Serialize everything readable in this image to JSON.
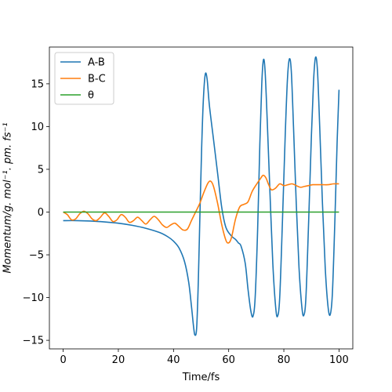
{
  "chart_data": {
    "type": "line",
    "xlabel": "Time/fs",
    "ylabel": "Momentum/g. mol⁻¹. pm. fs⁻¹",
    "xlim": [
      -5,
      105
    ],
    "ylim": [
      -16,
      19.3
    ],
    "xticks": [
      0,
      20,
      40,
      60,
      80,
      100
    ],
    "yticks": [
      -15,
      -10,
      -5,
      0,
      5,
      10,
      15
    ],
    "grid": false,
    "legend_position": "upper-left",
    "series": [
      {
        "name": "A-B",
        "color": "#1f77b4",
        "points": [
          [
            0,
            -1.0
          ],
          [
            5,
            -1.0
          ],
          [
            10,
            -1.05
          ],
          [
            15,
            -1.15
          ],
          [
            20,
            -1.3
          ],
          [
            25,
            -1.55
          ],
          [
            30,
            -1.9
          ],
          [
            35,
            -2.4
          ],
          [
            38,
            -2.9
          ],
          [
            40,
            -3.4
          ],
          [
            42,
            -4.2
          ],
          [
            44,
            -5.8
          ],
          [
            45.5,
            -8.2
          ],
          [
            46.5,
            -11.0
          ],
          [
            47.3,
            -13.5
          ],
          [
            47.8,
            -14.4
          ],
          [
            48.4,
            -13.5
          ],
          [
            49,
            -8.0
          ],
          [
            49.6,
            0.0
          ],
          [
            50.2,
            7.5
          ],
          [
            50.8,
            13.0
          ],
          [
            51.5,
            16.1
          ],
          [
            52.2,
            15.5
          ],
          [
            53,
            12.5
          ],
          [
            54.5,
            8.5
          ],
          [
            56,
            4.5
          ],
          [
            57.5,
            0.5
          ],
          [
            59,
            -1.8
          ],
          [
            61,
            -2.8
          ],
          [
            62.5,
            -3.2
          ],
          [
            63.5,
            -3.6
          ],
          [
            64.5,
            -4.0
          ],
          [
            66,
            -6.0
          ],
          [
            67,
            -9.0
          ],
          [
            68,
            -11.5
          ],
          [
            68.8,
            -12.2
          ],
          [
            69.6,
            -10.0
          ],
          [
            70.5,
            -2.0
          ],
          [
            71.3,
            8.0
          ],
          [
            72,
            15.0
          ],
          [
            72.6,
            17.8
          ],
          [
            73.2,
            16.5
          ],
          [
            74,
            10.5
          ],
          [
            75,
            2.0
          ],
          [
            76,
            -6.0
          ],
          [
            77,
            -11.0
          ],
          [
            77.7,
            -12.2
          ],
          [
            78.5,
            -10.0
          ],
          [
            79.5,
            -1.0
          ],
          [
            80.5,
            9.0
          ],
          [
            81.3,
            15.5
          ],
          [
            82.0,
            17.9
          ],
          [
            82.7,
            16.5
          ],
          [
            83.5,
            10.0
          ],
          [
            84.5,
            1.0
          ],
          [
            85.5,
            -6.5
          ],
          [
            86.5,
            -11.0
          ],
          [
            87.2,
            -12.1
          ],
          [
            88.0,
            -10.0
          ],
          [
            89,
            -1.0
          ],
          [
            90,
            9.0
          ],
          [
            90.8,
            15.5
          ],
          [
            91.5,
            18.1
          ],
          [
            92.2,
            16.5
          ],
          [
            93,
            10.0
          ],
          [
            94,
            1.0
          ],
          [
            95,
            -6.5
          ],
          [
            96,
            -11.0
          ],
          [
            96.8,
            -12.0
          ],
          [
            97.6,
            -9.5
          ],
          [
            98.5,
            -1.0
          ],
          [
            99.3,
            8.0
          ],
          [
            100,
            14.3
          ]
        ]
      },
      {
        "name": "B-C",
        "color": "#ff7f0e",
        "points": [
          [
            0,
            0.0
          ],
          [
            1.5,
            -0.3
          ],
          [
            3,
            -0.9
          ],
          [
            4.5,
            -0.8
          ],
          [
            6,
            -0.2
          ],
          [
            7.5,
            0.1
          ],
          [
            9,
            -0.2
          ],
          [
            10.5,
            -0.8
          ],
          [
            12,
            -1.0
          ],
          [
            13.5,
            -0.6
          ],
          [
            15,
            -0.1
          ],
          [
            16.5,
            -0.5
          ],
          [
            18,
            -1.1
          ],
          [
            19.5,
            -0.9
          ],
          [
            21,
            -0.3
          ],
          [
            22.5,
            -0.6
          ],
          [
            24,
            -1.2
          ],
          [
            25.5,
            -1.0
          ],
          [
            27,
            -0.6
          ],
          [
            28.5,
            -1.0
          ],
          [
            30,
            -1.4
          ],
          [
            31.5,
            -0.9
          ],
          [
            33,
            -0.5
          ],
          [
            34.5,
            -0.9
          ],
          [
            36,
            -1.5
          ],
          [
            37.5,
            -1.8
          ],
          [
            39,
            -1.5
          ],
          [
            40.5,
            -1.3
          ],
          [
            42,
            -1.7
          ],
          [
            43.5,
            -2.1
          ],
          [
            45,
            -2.0
          ],
          [
            46.5,
            -1.0
          ],
          [
            48,
            0.0
          ],
          [
            49.5,
            1.0
          ],
          [
            51,
            2.3
          ],
          [
            52.5,
            3.4
          ],
          [
            53.5,
            3.6
          ],
          [
            54.5,
            3.0
          ],
          [
            56,
            1.0
          ],
          [
            57.5,
            -1.5
          ],
          [
            59,
            -3.3
          ],
          [
            60,
            -3.6
          ],
          [
            61,
            -3.0
          ],
          [
            62.5,
            -0.8
          ],
          [
            64,
            0.6
          ],
          [
            65.5,
            0.9
          ],
          [
            67,
            1.2
          ],
          [
            68.5,
            2.4
          ],
          [
            70,
            3.2
          ],
          [
            71.5,
            3.9
          ],
          [
            72.5,
            4.3
          ],
          [
            73.5,
            4.0
          ],
          [
            74.5,
            3.2
          ],
          [
            75.5,
            2.6
          ],
          [
            77,
            2.8
          ],
          [
            78.5,
            3.3
          ],
          [
            80,
            3.1
          ],
          [
            81.5,
            3.2
          ],
          [
            83,
            3.3
          ],
          [
            84.5,
            3.1
          ],
          [
            86,
            2.9
          ],
          [
            87.5,
            3.0
          ],
          [
            89,
            3.1
          ],
          [
            90.5,
            3.2
          ],
          [
            92,
            3.2
          ],
          [
            94,
            3.2
          ],
          [
            96,
            3.2
          ],
          [
            98,
            3.3
          ],
          [
            100,
            3.3
          ]
        ]
      },
      {
        "name": "θ",
        "color": "#2ca02c",
        "points": [
          [
            0,
            0.0
          ],
          [
            100,
            0.0
          ]
        ]
      }
    ]
  }
}
